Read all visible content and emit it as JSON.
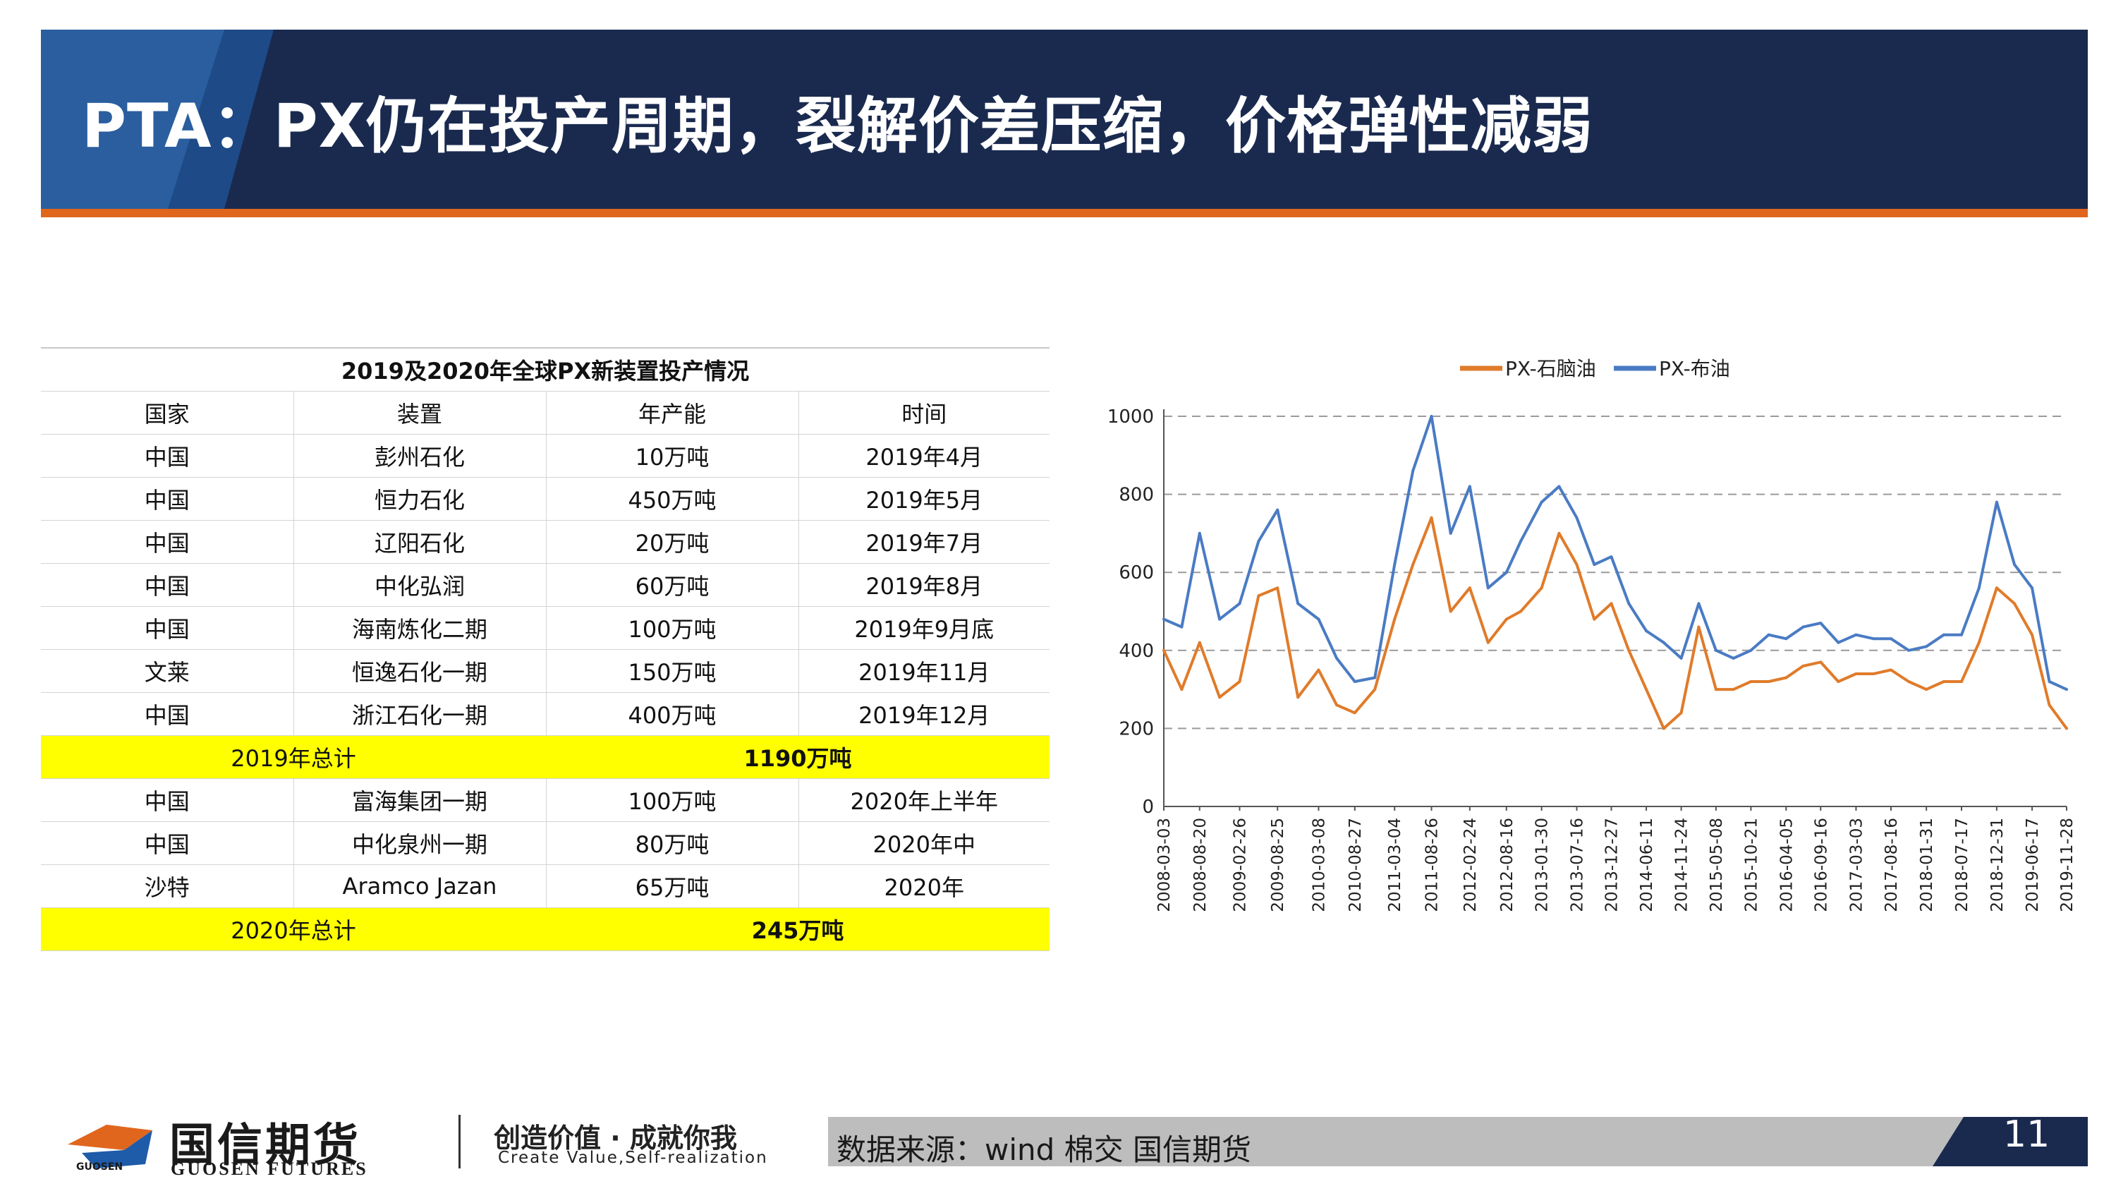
{
  "header": {
    "title": "PTA：PX仍在投产周期，裂解价差压缩，价格弹性减弱"
  },
  "table": {
    "caption": "2019及2020年全球PX新装置投产情况",
    "columns": [
      "国家",
      "装置",
      "年产能",
      "时间"
    ],
    "rows_2019": [
      [
        "中国",
        "彭州石化",
        "10万吨",
        "2019年4月"
      ],
      [
        "中国",
        "恒力石化",
        "450万吨",
        "2019年5月"
      ],
      [
        "中国",
        "辽阳石化",
        "20万吨",
        "2019年7月"
      ],
      [
        "中国",
        "中化弘润",
        "60万吨",
        "2019年8月"
      ],
      [
        "中国",
        "海南炼化二期",
        "100万吨",
        "2019年9月底"
      ],
      [
        "文莱",
        "恒逸石化一期",
        "150万吨",
        "2019年11月"
      ],
      [
        "中国",
        "浙江石化一期",
        "400万吨",
        "2019年12月"
      ]
    ],
    "total_2019": {
      "label": "2019年总计",
      "value": "1190万吨"
    },
    "rows_2020": [
      [
        "中国",
        "富海集团一期",
        "100万吨",
        "2020年上半年"
      ],
      [
        "中国",
        "中化泉州一期",
        "80万吨",
        "2020年中"
      ],
      [
        "沙特",
        "Aramco Jazan",
        "65万吨",
        "2020年"
      ]
    ],
    "total_2020": {
      "label": "2020年总计",
      "value": "245万吨"
    },
    "highlight_color": "#ffff00"
  },
  "chart_data": {
    "type": "line",
    "ylim": [
      0,
      1000
    ],
    "yticks": [
      0,
      200,
      400,
      600,
      800,
      1000
    ],
    "grid": true,
    "legend_position": "top",
    "x_ticks": [
      "2008-03-03",
      "2008-08-20",
      "2009-02-26",
      "2009-08-25",
      "2010-03-08",
      "2010-08-27",
      "2011-03-04",
      "2011-08-26",
      "2012-02-24",
      "2012-08-16",
      "2013-01-30",
      "2013-07-16",
      "2013-12-27",
      "2014-06-11",
      "2014-11-24",
      "2015-05-08",
      "2015-10-21",
      "2016-04-05",
      "2016-09-16",
      "2017-03-03",
      "2017-08-16",
      "2018-01-31",
      "2018-07-17",
      "2018-12-31",
      "2019-06-17",
      "2019-11-28"
    ],
    "x": [
      "2008-03-03",
      "2008-05-27",
      "2008-08-20",
      "2008-11-23",
      "2009-02-26",
      "2009-05-27",
      "2009-08-25",
      "2009-11-30",
      "2010-03-08",
      "2010-06-02",
      "2010-08-27",
      "2010-11-30",
      "2011-03-04",
      "2011-05-30",
      "2011-08-26",
      "2011-11-25",
      "2012-02-24",
      "2012-05-21",
      "2012-08-16",
      "2012-10-23",
      "2013-01-30",
      "2013-04-23",
      "2013-07-16",
      "2013-10-07",
      "2013-12-27",
      "2014-03-20",
      "2014-06-11",
      "2014-09-02",
      "2014-11-24",
      "2015-02-15",
      "2015-05-08",
      "2015-07-30",
      "2015-10-21",
      "2016-01-13",
      "2016-04-05",
      "2016-06-25",
      "2016-09-16",
      "2016-12-09",
      "2017-03-03",
      "2017-05-25",
      "2017-08-16",
      "2017-11-08",
      "2018-01-31",
      "2018-04-24",
      "2018-07-17",
      "2018-10-08",
      "2018-12-31",
      "2019-03-25",
      "2019-06-17",
      "2019-09-07",
      "2019-11-28"
    ],
    "series": [
      {
        "name": "PX-石脑油",
        "color": "#e07b2a",
        "values": [
          400,
          300,
          420,
          280,
          320,
          540,
          560,
          280,
          350,
          260,
          240,
          300,
          480,
          620,
          740,
          500,
          560,
          420,
          480,
          500,
          560,
          700,
          620,
          480,
          520,
          400,
          300,
          200,
          240,
          460,
          300,
          300,
          320,
          320,
          330,
          360,
          370,
          320,
          340,
          340,
          350,
          320,
          300,
          320,
          320,
          420,
          560,
          520,
          440,
          260,
          200
        ]
      },
      {
        "name": "PX-布油",
        "color": "#4a7bc4",
        "values": [
          480,
          460,
          700,
          480,
          520,
          680,
          760,
          520,
          480,
          380,
          320,
          330,
          620,
          860,
          1000,
          700,
          820,
          560,
          600,
          680,
          780,
          820,
          740,
          620,
          640,
          520,
          450,
          420,
          380,
          520,
          400,
          380,
          400,
          440,
          430,
          460,
          470,
          420,
          440,
          430,
          430,
          400,
          410,
          440,
          440,
          560,
          780,
          620,
          560,
          320,
          300
        ]
      }
    ]
  },
  "footer": {
    "logo_cn": "国信期货",
    "logo_en": "GUOSEN FUTURES",
    "logo_small": "GUOSEN",
    "slogan_cn": "创造价值 · 成就你我",
    "slogan_en": "Create Value,Self-realization",
    "source": "数据来源：wind  棉交   国信期货",
    "page": "11"
  }
}
